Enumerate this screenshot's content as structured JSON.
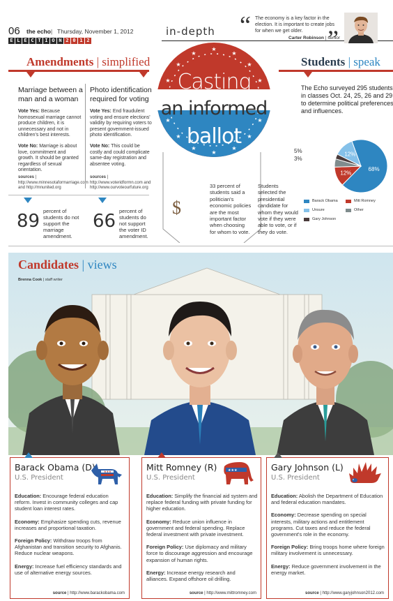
{
  "header": {
    "page_number": "06",
    "paper": "the echo",
    "separator": "|",
    "date": "Thursday, November 1, 2012",
    "section": "in-depth",
    "election_tag": [
      "E",
      "L",
      "E",
      "C",
      "T",
      "I",
      "O",
      "N",
      "2",
      "0",
      "1",
      "2"
    ]
  },
  "quote": {
    "text": "The economy is a key factor in the election. It is important to create jobs for when we get older.",
    "name": "Carter Robinson",
    "role": "senior"
  },
  "amendments": {
    "title_bold": "Amendments",
    "title_rest": "simplified",
    "marriage": {
      "heading": "Marriage between a man and a woman",
      "yes_label": "Vote Yes:",
      "yes_text": "Because homosexual marriage cannot produce children, it is unnecessary and not in children's best interests.",
      "no_label": "Vote No:",
      "no_text": "Marriage is about love, commitment and growth. It should be granted regardless of sexual orientation.",
      "source_label": "sources",
      "source_text": "http://www.minnesotaformarriage.com and http://mnunited.org",
      "stat_number": "89",
      "stat_text": "percent of students do not support the marriage amendment."
    },
    "photo_id": {
      "heading": "Photo identification required for voting",
      "yes_label": "Vote Yes:",
      "yes_text": "End fraudulent voting and ensure elections' validity by requiring voters to present government-issued photo identification.",
      "no_label": "Vote No:",
      "no_text": "This could be costly and could complicate same-day registration and absentee voting.",
      "source_label": "sources",
      "source_text": "http://www.voteridformn.com and http://www.ourvoteourfuture.org",
      "stat_number": "66",
      "stat_text": "percent of students do not support the voter ID amendment."
    }
  },
  "seal": {
    "line1": "Casting",
    "line2": "an informed",
    "line3": "ballot"
  },
  "middle": {
    "dollar": "$",
    "economic_text": "33 percent of students said a politician's economic policies are the most important factor when choosing for whom to vote.",
    "selected_text": "Students selected the presidential candidate for whom they would vote if they were able to vote, or if they do vote."
  },
  "students": {
    "title_bold": "Students",
    "title_rest": "speak",
    "intro": "The Echo surveyed 295 students in classes Oct. 24, 25, 26 and 29 to determine political preferences and influences."
  },
  "chart_data": {
    "type": "pie",
    "categories": [
      "Barack Obama",
      "Mitt Romney",
      "Unsure",
      "Other",
      "Gary Johnson"
    ],
    "values": [
      68,
      12,
      12,
      5,
      3
    ],
    "colors": [
      "#2e86c1",
      "#c0392b",
      "#85c1e9",
      "#7f8c8d",
      "#4a3b3b"
    ],
    "labels": [
      "68%",
      "12%",
      "12%",
      "5%",
      "3%"
    ],
    "legend_position": "bottom"
  },
  "candidates": {
    "title_bold": "Candidates",
    "title_rest": "views",
    "byline_name": "Brenna Cook",
    "byline_role": "staff writer",
    "list": [
      {
        "name": "Barack Obama (D)",
        "role": "U.S. President",
        "icon": "donkey-icon",
        "education_label": "Education:",
        "education": "Encourage federal education reform. Invest in community colleges and cap student loan interest rates.",
        "economy_label": "Economy:",
        "economy": "Emphasize spending cuts, revenue increases and proportional taxation.",
        "foreign_label": "Foreign Policy:",
        "foreign": "Withdraw troops from Afghanistan and transition security to Afghanis. Reduce nuclear weapons.",
        "energy_label": "Energy:",
        "energy": "Increase fuel efficiency standards and use of alternative energy sources.",
        "source_label": "source",
        "source": "http://www.barackobama.com"
      },
      {
        "name": "Mitt Romney (R)",
        "role": "U.S. President",
        "icon": "elephant-icon",
        "education_label": "Education:",
        "education": "Simplify the financial aid system and replace federal funding with private funding for higher education.",
        "economy_label": "Economy:",
        "economy": "Reduce union influence in government and federal spending. Replace federal investment with private investment.",
        "foreign_label": "Foreign Policy:",
        "foreign": "Use diplomacy and military force to discourage aggression and encourage expansion of human rights.",
        "energy_label": "Energy:",
        "energy": "Increase energy research and alliances. Expand offshore oil drilling.",
        "source_label": "source",
        "source": "http://www.mittromney.com"
      },
      {
        "name": "Gary Johnson (L)",
        "role": "U.S. President",
        "icon": "porcupine-icon",
        "education_label": "Education:",
        "education": "Abolish the Department of Education and federal education mandates.",
        "economy_label": "Economy:",
        "economy": "Decrease spending on special interests, military actions and entitlement programs. Cut taxes and reduce the federal government's role in the economy.",
        "foreign_label": "Foreign Policy:",
        "foreign": "Bring troops home where foreign military involvement is unnecessary.",
        "energy_label": "Energy:",
        "energy": "Reduce government involvement in the energy market.",
        "source_label": "source",
        "source": "http://www.garyjohnson2012.com"
      }
    ]
  }
}
